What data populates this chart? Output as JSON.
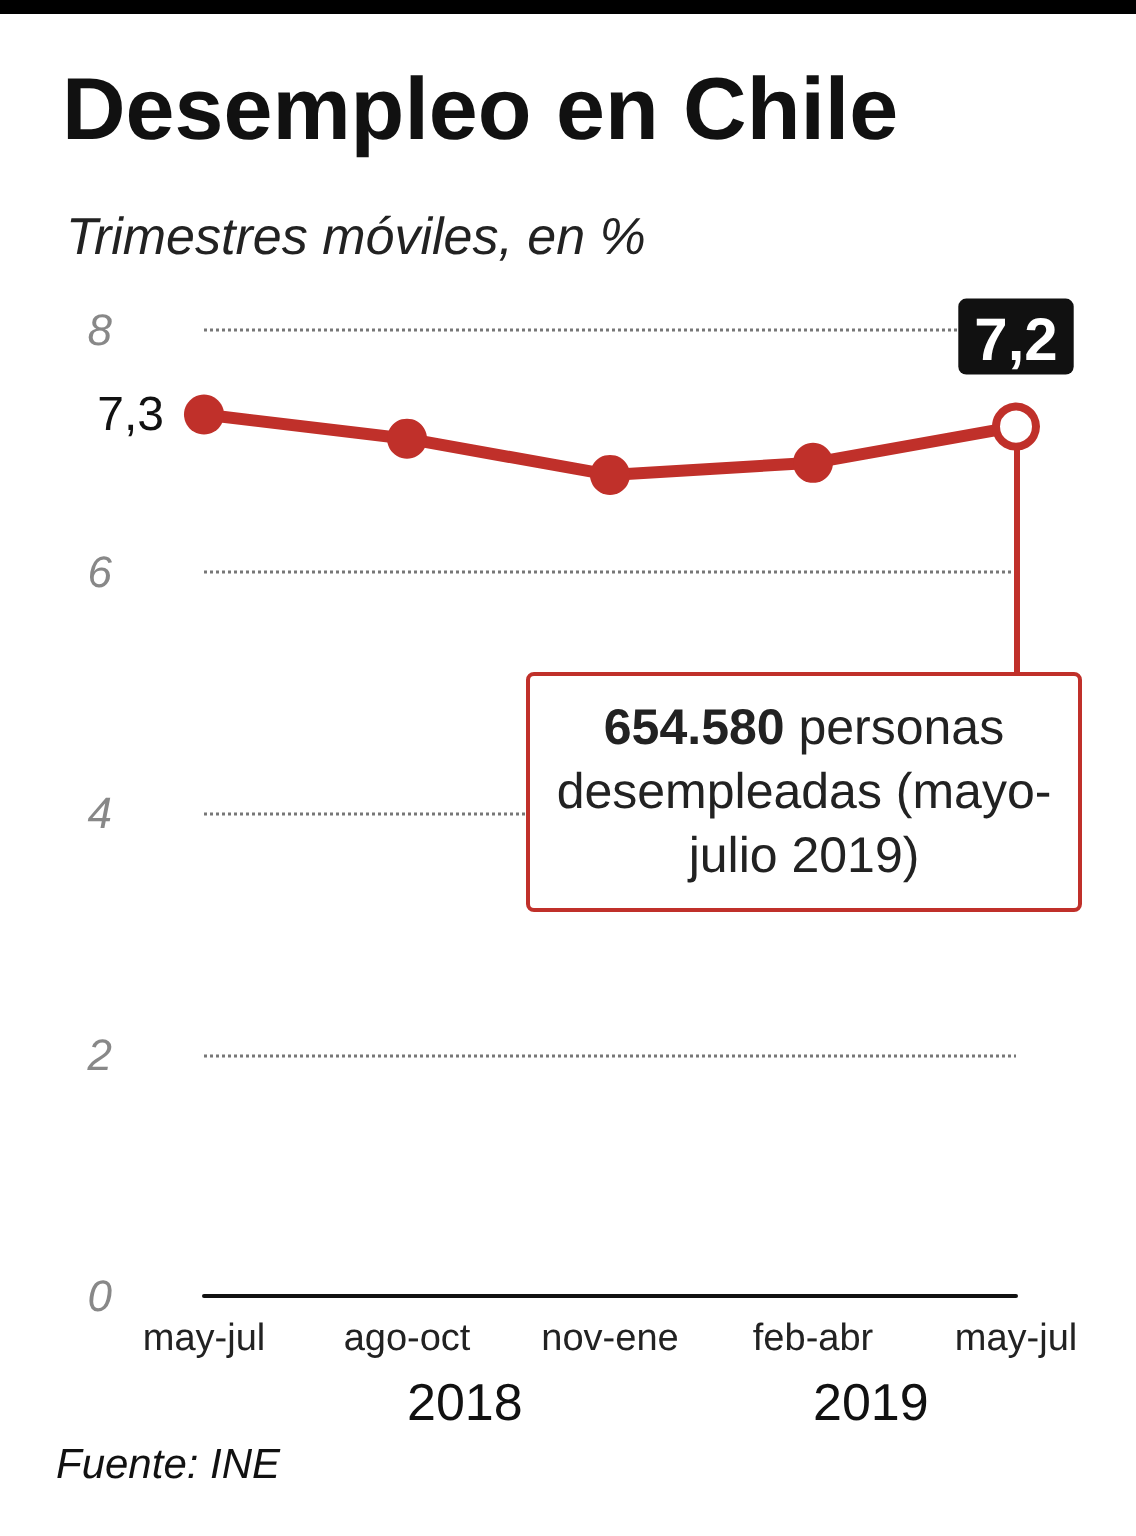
{
  "chart_data": {
    "type": "line",
    "title": "Desempleo en Chile",
    "subtitle": "Trimestres móviles, en %",
    "categories": [
      "may-jul",
      "ago-oct",
      "nov-ene",
      "feb-abr",
      "may-jul"
    ],
    "series": [
      {
        "color": "#c0302a",
        "values": [
          7.3,
          7.1,
          6.8,
          6.9,
          7.2
        ],
        "value_labels": [
          "7,3",
          null,
          null,
          null,
          "7,2"
        ]
      }
    ],
    "ylim": [
      0,
      8
    ],
    "yticks": [
      0,
      2,
      4,
      6,
      8
    ],
    "grid": "y",
    "marker": "circle",
    "line_style": "solid",
    "annotations": [
      "2018",
      "2019",
      "654.580 personas desempleadas (mayo-julio 2019)",
      "Fuente: INE"
    ]
  }
}
